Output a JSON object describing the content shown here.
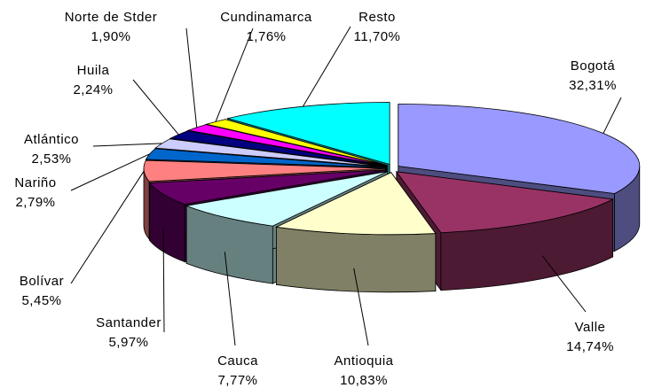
{
  "chart_data": {
    "type": "pie",
    "categories": [
      "Bogotá",
      "Valle",
      "Antioquia",
      "Cauca",
      "Santander",
      "Bolívar",
      "Nariño",
      "Atlántico",
      "Huila",
      "Norte de Stder",
      "Cundinamarca",
      "Resto"
    ],
    "values": [
      32.31,
      14.74,
      10.83,
      7.77,
      5.97,
      5.45,
      2.79,
      2.53,
      2.24,
      1.9,
      1.76,
      11.7
    ],
    "value_labels": [
      "32,31%",
      "14,74%",
      "10,83%",
      "7,77%",
      "5,97%",
      "5,45%",
      "2,79%",
      "2,53%",
      "2,24%",
      "1,90%",
      "1,76%",
      "11,70%"
    ],
    "colors": [
      "#9999ff",
      "#993366",
      "#ffffcc",
      "#ccffff",
      "#660066",
      "#ff8080",
      "#0066cc",
      "#ccccff",
      "#000080",
      "#ff00ff",
      "#ffff00",
      "#00ffff"
    ]
  }
}
